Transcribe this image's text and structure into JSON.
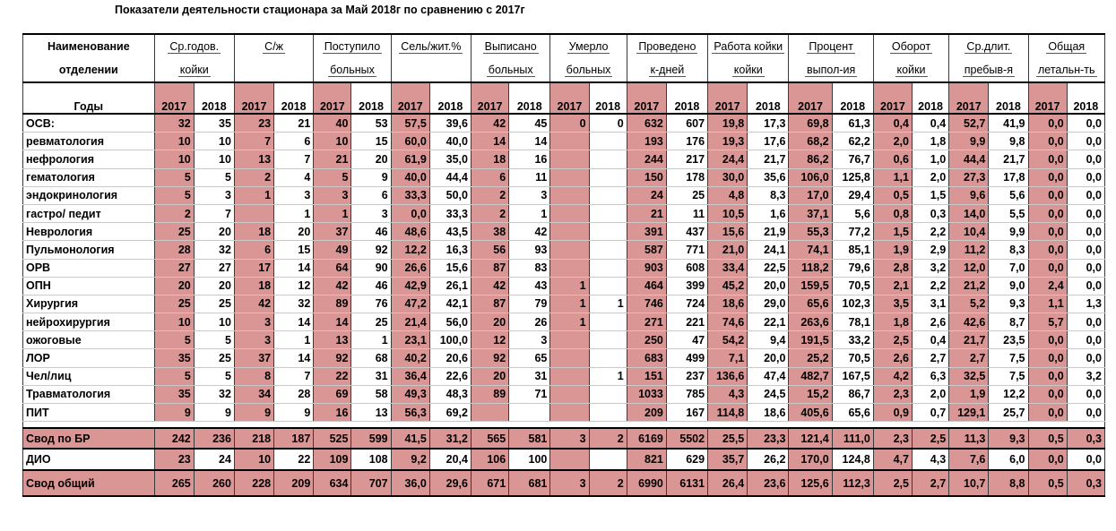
{
  "title": "Показатели деятельности стационара за Май  2018г по сравнению с 2017г",
  "colors": {
    "accent": "#d99694"
  },
  "headers": {
    "name1": "Наименование",
    "name2": "отделении",
    "years_label": "Годы",
    "groups": [
      {
        "l1": "Ср.годов.",
        "l2": "койки"
      },
      {
        "l1": "С/ж",
        "l2": ""
      },
      {
        "l1": "Поступило",
        "l2": "больных"
      },
      {
        "l1": "Сель/жит.%",
        "l2": ""
      },
      {
        "l1": "Выписано",
        "l2": "больных"
      },
      {
        "l1": "Умерло",
        "l2": "больных"
      },
      {
        "l1": "Проведено",
        "l2": "к-дней"
      },
      {
        "l1": "Работа койки",
        "l2": "койки"
      },
      {
        "l1": "Процент",
        "l2": "выпол-ия"
      },
      {
        "l1": "Оборот",
        "l2": "койки"
      },
      {
        "l1": "Ср.длит.",
        "l2": "пребыв-я"
      },
      {
        "l1": "Общая",
        "l2": "летальн-ть"
      }
    ],
    "y2017": "2017",
    "y2018": "2018"
  },
  "rows": [
    {
      "name": "ОСВ:",
      "v": [
        "32",
        "35",
        "23",
        "21",
        "40",
        "53",
        "57,5",
        "39,6",
        "42",
        "45",
        "0",
        "0",
        "632",
        "607",
        "19,8",
        "17,3",
        "69,8",
        "61,3",
        "0,4",
        "0,4",
        "52,7",
        "41,9",
        "0,0",
        "0,0"
      ]
    },
    {
      "name": " ревматология",
      "v": [
        "10",
        "10",
        "7",
        "6",
        "10",
        "15",
        "60,0",
        "40,0",
        "14",
        "14",
        "",
        "",
        "193",
        "176",
        "19,3",
        "17,6",
        "68,2",
        "62,2",
        "2,0",
        "1,8",
        "9,9",
        "9,8",
        "0,0",
        "0,0"
      ]
    },
    {
      "name": "нефрология",
      "v": [
        "10",
        "10",
        "13",
        "7",
        "21",
        "20",
        "61,9",
        "35,0",
        "18",
        "16",
        "",
        "",
        "244",
        "217",
        "24,4",
        "21,7",
        "86,2",
        "76,7",
        "0,6",
        "1,0",
        "44,4",
        "21,7",
        "0,0",
        "0,0"
      ]
    },
    {
      "name": "гематология",
      "v": [
        "5",
        "5",
        "2",
        "4",
        "5",
        "9",
        "40,0",
        "44,4",
        "6",
        "11",
        "",
        "",
        "150",
        "178",
        "30,0",
        "35,6",
        "106,0",
        "125,8",
        "1,1",
        "2,0",
        "27,3",
        "17,8",
        "0,0",
        "0,0"
      ]
    },
    {
      "name": "эндокринология",
      "v": [
        "5",
        "3",
        "1",
        "3",
        "3",
        "6",
        "33,3",
        "50,0",
        "2",
        "3",
        "",
        "",
        "24",
        "25",
        "4,8",
        "8,3",
        "17,0",
        "29,4",
        "0,5",
        "1,5",
        "9,6",
        "5,6",
        "0,0",
        "0,0"
      ]
    },
    {
      "name": "гастро/ педит",
      "v": [
        "2",
        "7",
        "",
        "1",
        "1",
        "3",
        "0,0",
        "33,3",
        "2",
        "1",
        "",
        "",
        "21",
        "11",
        "10,5",
        "1,6",
        "37,1",
        "5,6",
        "0,8",
        "0,3",
        "14,0",
        "5,5",
        "0,0",
        "0,0"
      ]
    },
    {
      "name": "Неврология",
      "v": [
        "25",
        "20",
        "18",
        "20",
        "37",
        "46",
        "48,6",
        "43,5",
        "38",
        "42",
        "",
        "",
        "391",
        "437",
        "15,6",
        "21,9",
        "55,3",
        "77,2",
        "1,5",
        "2,2",
        "10,4",
        "9,9",
        "0,0",
        "0,0"
      ]
    },
    {
      "name": "Пульмонология",
      "v": [
        "28",
        "32",
        "6",
        "15",
        "49",
        "92",
        "12,2",
        "16,3",
        "56",
        "93",
        "",
        "",
        "587",
        "771",
        "21,0",
        "24,1",
        "74,1",
        "85,1",
        "1,9",
        "2,9",
        "11,2",
        "8,3",
        "0,0",
        "0,0"
      ]
    },
    {
      "name": "ОРВ",
      "v": [
        "27",
        "27",
        "17",
        "14",
        "64",
        "90",
        "26,6",
        "15,6",
        "87",
        "83",
        "",
        "",
        "903",
        "608",
        "33,4",
        "22,5",
        "118,2",
        "79,6",
        "2,8",
        "3,2",
        "12,0",
        "7,0",
        "0,0",
        "0,0"
      ]
    },
    {
      "name": "ОПН",
      "v": [
        "20",
        "20",
        "18",
        "12",
        "42",
        "46",
        "42,9",
        "26,1",
        "42",
        "43",
        "1",
        "",
        "464",
        "399",
        "45,2",
        "20,0",
        "159,5",
        "70,5",
        "2,1",
        "2,2",
        "21,2",
        "9,0",
        "2,4",
        "0,0"
      ]
    },
    {
      "name": "Хирургия",
      "v": [
        "25",
        "25",
        "42",
        "32",
        "89",
        "76",
        "47,2",
        "42,1",
        "87",
        "79",
        "1",
        "1",
        "746",
        "724",
        "18,6",
        "29,0",
        "65,6",
        "102,3",
        "3,5",
        "3,1",
        "5,2",
        "9,3",
        "1,1",
        "1,3"
      ]
    },
    {
      "name": "нейрохирургия",
      "v": [
        "10",
        "10",
        "3",
        "14",
        "14",
        "25",
        "21,4",
        "56,0",
        "20",
        "26",
        "1",
        "",
        "271",
        "221",
        "74,6",
        "22,1",
        "263,6",
        "78,1",
        "1,8",
        "2,6",
        "42,6",
        "8,7",
        "5,7",
        "0,0"
      ]
    },
    {
      "name": "ожоговые",
      "v": [
        "5",
        "5",
        "3",
        "1",
        "13",
        "1",
        "23,1",
        "100,0",
        "12",
        "3",
        "",
        "",
        "250",
        "47",
        "54,2",
        "9,4",
        "191,5",
        "33,2",
        "2,5",
        "0,4",
        "21,7",
        "23,5",
        "0,0",
        "0,0"
      ]
    },
    {
      "name": "ЛОР",
      "v": [
        "35",
        "25",
        "37",
        "14",
        "92",
        "68",
        "40,2",
        "20,6",
        "92",
        "65",
        "",
        "",
        "683",
        "499",
        "7,1",
        "20,0",
        "25,2",
        "70,5",
        "2,6",
        "2,7",
        "2,7",
        "7,5",
        "0,0",
        "0,0"
      ]
    },
    {
      "name": "Чел/лиц",
      "v": [
        "5",
        "5",
        "8",
        "7",
        "22",
        "31",
        "36,4",
        "22,6",
        "20",
        "31",
        "",
        "1",
        "151",
        "237",
        "136,6",
        "47,4",
        "482,7",
        "167,5",
        "4,2",
        "6,3",
        "32,5",
        "7,5",
        "0,0",
        "3,2"
      ]
    },
    {
      "name": "Травматология",
      "v": [
        "35",
        "32",
        "34",
        "28",
        "69",
        "58",
        "49,3",
        "48,3",
        "89",
        "71",
        "",
        "",
        "1033",
        "785",
        "4,3",
        "24,5",
        "15,2",
        "86,7",
        "2,3",
        "2,0",
        "1,9",
        "12,2",
        "0,0",
        "0,0"
      ]
    },
    {
      "name": "ПИТ",
      "v": [
        "9",
        "9",
        "9",
        "9",
        "16",
        "13",
        "56,3",
        "69,2",
        "",
        "",
        "",
        "",
        "209",
        "167",
        "114,8",
        "18,6",
        "405,6",
        "65,6",
        "0,9",
        "0,7",
        "129,1",
        "25,7",
        "0,0",
        "0,0"
      ]
    }
  ],
  "summary": {
    "name": "Свод по БР",
    "v": [
      "242",
      "236",
      "218",
      "187",
      "525",
      "599",
      "41,5",
      "31,2",
      "565",
      "581",
      "3",
      "2",
      "6169",
      "5502",
      "25,5",
      "23,3",
      "121,4",
      "111,0",
      "2,3",
      "2,5",
      "11,3",
      "9,3",
      "0,5",
      "0,3"
    ]
  },
  "dio": {
    "name": "ДИО",
    "v": [
      "23",
      "24",
      "10",
      "22",
      "109",
      "108",
      "9,2",
      "20,4",
      "106",
      "100",
      "",
      "",
      "821",
      "629",
      "35,7",
      "26,2",
      "170,0",
      "124,8",
      "4,7",
      "4,3",
      "7,6",
      "6,0",
      "0,0",
      "0,0"
    ]
  },
  "total": {
    "name": "Свод общий",
    "v": [
      "265",
      "260",
      "228",
      "209",
      "634",
      "707",
      "36,0",
      "29,6",
      "671",
      "681",
      "3",
      "2",
      "6990",
      "6131",
      "26,4",
      "23,6",
      "125,6",
      "112,3",
      "2,5",
      "2,7",
      "10,7",
      "8,8",
      "0,5",
      "0,3"
    ]
  }
}
